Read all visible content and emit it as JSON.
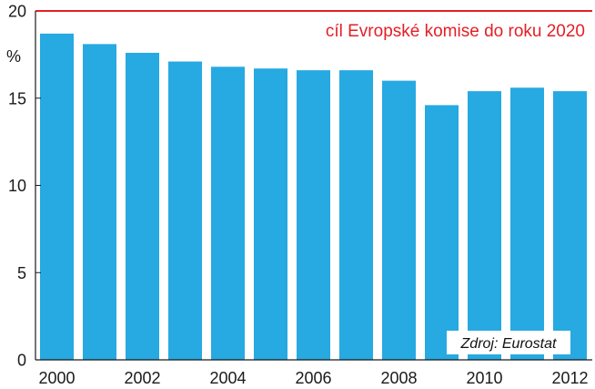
{
  "chart_data": {
    "type": "bar",
    "categories": [
      "2000",
      "2001",
      "2002",
      "2003",
      "2004",
      "2005",
      "2006",
      "2007",
      "2008",
      "2009",
      "2010",
      "2011",
      "2012"
    ],
    "values": [
      18.7,
      18.1,
      17.6,
      17.1,
      16.8,
      16.7,
      16.6,
      16.6,
      16.0,
      14.6,
      15.4,
      15.6,
      15.4
    ],
    "x_tick_labels": [
      "2000",
      "",
      "2002",
      "",
      "2004",
      "",
      "2006",
      "",
      "2008",
      "",
      "2010",
      "",
      "2012"
    ],
    "ylabel": "%",
    "ylim": [
      0,
      20
    ],
    "y_ticks": [
      0,
      5,
      10,
      15,
      20
    ],
    "grid": false,
    "bar_color": "#27a9e1",
    "target": {
      "value": 20,
      "label": "cíl Evropské komise do roku 2020",
      "color": "#e31f26"
    },
    "source_note": "Zdroj: Eurostat"
  }
}
